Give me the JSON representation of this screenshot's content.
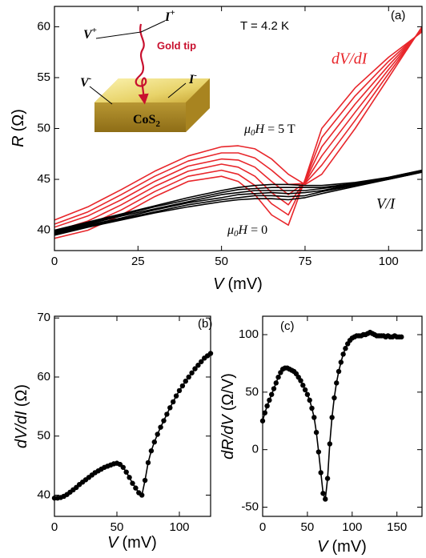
{
  "chart_data": [
    {
      "type": "line",
      "x": [
        0,
        10,
        20,
        30,
        40,
        50,
        55,
        60,
        65,
        70,
        75,
        80,
        90,
        100,
        110
      ],
      "series": [
        {
          "color": "#e8262b",
          "values": [
            39.2,
            40,
            41.5,
            43.3,
            44.8,
            45.3,
            44.8,
            43.5,
            41.5,
            40.5,
            45,
            50,
            54,
            57,
            59.5
          ]
        },
        {
          "color": "#e8262b",
          "values": [
            39.6,
            40.5,
            42,
            43.8,
            45.3,
            45.9,
            45.5,
            44.4,
            42.6,
            41.5,
            44.9,
            49.1,
            53.2,
            56.6,
            59.6
          ]
        },
        {
          "color": "#e8262b",
          "values": [
            39.9,
            40.9,
            42.5,
            44.3,
            45.8,
            46.5,
            46.2,
            45.3,
            43.7,
            42.5,
            44.8,
            48.2,
            52.4,
            56.2,
            59.7
          ]
        },
        {
          "color": "#e8262b",
          "values": [
            40.3,
            41.4,
            43,
            44.8,
            46.3,
            47,
            46.9,
            46.2,
            44.8,
            43.5,
            44.7,
            47.3,
            51.6,
            55.8,
            59.8
          ]
        },
        {
          "color": "#e8262b",
          "values": [
            40.6,
            41.8,
            43.5,
            45.3,
            46.8,
            47.6,
            47.6,
            47.1,
            45.9,
            44.5,
            44.6,
            46.4,
            50.8,
            55.4,
            59.9
          ]
        },
        {
          "color": "#e8262b",
          "values": [
            41,
            42.3,
            44,
            45.8,
            47.3,
            48.2,
            48.3,
            48,
            47,
            45.5,
            44.5,
            45.5,
            50,
            55,
            60
          ]
        },
        {
          "color": "#000000",
          "values": [
            39.5,
            40.3,
            41,
            41.7,
            42.3,
            42.8,
            43,
            43.1,
            43.1,
            43,
            43.2,
            43.6,
            44.3,
            45,
            45.7
          ]
        },
        {
          "color": "#000000",
          "values": [
            39.6,
            40.4,
            41.1,
            41.8,
            42.5,
            43,
            43.2,
            43.4,
            43.4,
            43.3,
            43.4,
            43.8,
            44.4,
            45,
            45.7
          ]
        },
        {
          "color": "#000000",
          "values": [
            39.7,
            40.5,
            41.2,
            42,
            42.7,
            43.2,
            43.5,
            43.6,
            43.7,
            43.6,
            43.7,
            43.9,
            44.5,
            45.1,
            45.8
          ]
        },
        {
          "color": "#000000",
          "values": [
            39.8,
            40.6,
            41.4,
            42.1,
            42.8,
            43.5,
            43.7,
            43.9,
            43.9,
            43.9,
            43.9,
            44.1,
            44.5,
            45.1,
            45.8
          ]
        },
        {
          "color": "#000000",
          "values": [
            39.9,
            40.7,
            41.5,
            42.3,
            43,
            43.7,
            44,
            44.1,
            44.2,
            44.2,
            44.2,
            44.2,
            44.6,
            45.2,
            45.9
          ]
        },
        {
          "color": "#000000",
          "values": [
            40,
            40.8,
            41.6,
            42.4,
            43.2,
            43.9,
            44.2,
            44.4,
            44.5,
            44.5,
            44.4,
            44.4,
            44.7,
            45.2,
            45.9
          ]
        }
      ],
      "xlim": [
        0,
        110
      ],
      "xticks": [
        0,
        25,
        50,
        75,
        100
      ],
      "ylim": [
        38,
        62
      ],
      "yticks": [
        40,
        45,
        50,
        55,
        60
      ],
      "x_label": {
        "symbol": "V",
        "unit": "(mV)"
      },
      "y_label": {
        "symbol": "R",
        "unit": "(Ω)"
      },
      "annotations": {
        "temperature": "T = 4.2 K",
        "panel": "(a)",
        "dvdi": "dV/dI",
        "vi": "V/I",
        "field_high": {
          "mu": "μ",
          "sub": "0",
          "h": "H",
          "rest": "= 5 T"
        },
        "field_zero": {
          "mu": "μ",
          "sub": "0",
          "h": "H",
          "rest": "= 0"
        }
      },
      "inset": {
        "v_plus": {
          "base": "V",
          "sup": "+"
        },
        "i_plus": {
          "base": "I",
          "sup": "+"
        },
        "tip": "Gold tip",
        "v_minus": {
          "base": "V",
          "sup": "-"
        },
        "i_minus": {
          "base": "I",
          "sup": "-"
        },
        "sample": {
          "base": "CoS",
          "sub": "2"
        }
      }
    },
    {
      "type": "line",
      "markers": true,
      "color": "#000000",
      "x": [
        0,
        2.5,
        5,
        7.5,
        10,
        12.5,
        15,
        17.5,
        20,
        22.5,
        25,
        27.5,
        30,
        32.5,
        35,
        37.5,
        40,
        42.5,
        45,
        47.5,
        50,
        52.5,
        55,
        57.5,
        60,
        62.5,
        65,
        67.5,
        70,
        72.5,
        75,
        77.5,
        80,
        82.5,
        85,
        87.5,
        90,
        92.5,
        95,
        97.5,
        100,
        102.5,
        105,
        107.5,
        110,
        112.5,
        115,
        117.5,
        120,
        122.5,
        125
      ],
      "values": [
        39.5,
        39.5,
        39.6,
        39.8,
        40.1,
        40.5,
        40.9,
        41.3,
        41.8,
        42.2,
        42.6,
        43,
        43.4,
        43.8,
        44.1,
        44.4,
        44.7,
        44.9,
        45.1,
        45.3,
        45.4,
        45.2,
        44.7,
        43.9,
        43,
        42,
        41.2,
        40.4,
        40,
        42.5,
        45.5,
        47.5,
        49,
        50.3,
        51.5,
        52.6,
        53.7,
        54.8,
        55.8,
        56.8,
        57.7,
        58.5,
        59.3,
        60,
        60.7,
        61.4,
        62,
        62.6,
        63.2,
        63.6,
        64
      ],
      "xlim": [
        0,
        125
      ],
      "xticks": [
        0,
        50,
        100
      ],
      "ylim": [
        36.4,
        70.3
      ],
      "yticks": [
        40,
        50,
        60,
        70
      ],
      "x_label": {
        "symbol": "V",
        "unit": "(mV)"
      },
      "y_label": {
        "symbol": "dV/dI",
        "unit": "(Ω)"
      },
      "annotations": {
        "panel": "(b)"
      }
    },
    {
      "type": "line",
      "markers": true,
      "color": "#000000",
      "x": [
        0,
        2.5,
        5,
        7.5,
        10,
        12.5,
        15,
        17.5,
        20,
        22.5,
        25,
        27.5,
        30,
        32.5,
        35,
        37.5,
        40,
        42.5,
        45,
        47.5,
        50,
        52.5,
        55,
        57.5,
        60,
        62.5,
        65,
        67.5,
        70,
        72.5,
        75,
        77.5,
        80,
        82.5,
        85,
        87.5,
        90,
        92.5,
        95,
        97.5,
        100,
        102.5,
        105,
        107.5,
        110,
        112.5,
        115,
        117.5,
        120,
        122.5,
        125,
        127.5,
        130,
        132.5,
        135,
        137.5,
        140,
        142.5,
        145,
        147.5,
        150,
        152.5,
        155
      ],
      "values": [
        25,
        32,
        38,
        43,
        48,
        53,
        58,
        63,
        67,
        70,
        71,
        71,
        70,
        69,
        68,
        66,
        63,
        60,
        56,
        52,
        48,
        43,
        36,
        28,
        15,
        -2,
        -20,
        -38,
        -43,
        -25,
        5,
        28,
        45,
        58,
        68,
        76,
        83,
        88,
        92,
        95,
        97,
        98,
        99,
        99,
        99,
        100,
        100,
        101,
        102,
        101,
        100,
        99,
        99,
        99,
        99,
        98,
        99,
        98,
        98,
        99,
        98,
        98,
        98
      ],
      "xlim": [
        0,
        178
      ],
      "xticks": [
        0,
        50,
        100,
        150
      ],
      "ylim": [
        -58,
        116
      ],
      "yticks": [
        -50,
        0,
        50,
        100
      ],
      "x_label": {
        "symbol": "V",
        "unit": "(mV)"
      },
      "y_label": {
        "symbol": "dR/dV",
        "unit": "(Ω/V)"
      },
      "annotations": {
        "panel": "(c)"
      }
    }
  ]
}
